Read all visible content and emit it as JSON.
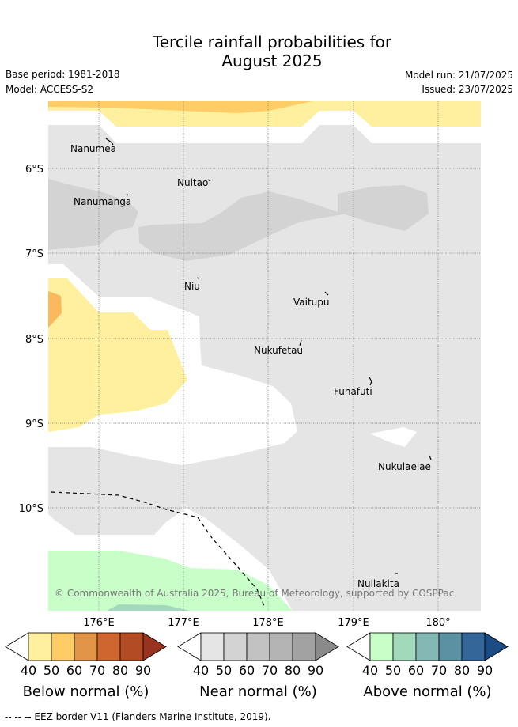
{
  "header": {
    "title_line1": "Tercile rainfall probabilities for",
    "title_line2": "August 2025",
    "base_period": "Base period: 1981-2018",
    "model": "Model: ACCESS-S2",
    "model_run": "Model run: 21/07/2025",
    "issued": "Issued: 23/07/2025"
  },
  "map": {
    "lat_labels": [
      "6°S",
      "7°S",
      "8°S",
      "9°S",
      "10°S"
    ],
    "lon_labels": [
      "176°E",
      "177°E",
      "178°E",
      "179°E",
      "180°"
    ],
    "islands": [
      "Nanumea",
      "Nuitao",
      "Nanumanga",
      "Niu",
      "Vaitupu",
      "Nukufetau",
      "Funafuti",
      "Nukulaelae",
      "Nuilakita"
    ],
    "copyright": "© Commonwealth of Australia 2025, Bureau of Meteorology, supported by COSPPac"
  },
  "colorbars": [
    {
      "title": "Below normal (%)",
      "ticks": [
        "40",
        "50",
        "60",
        "70",
        "80",
        "90"
      ],
      "colors": [
        "#ffffff",
        "#fff0a0",
        "#ffcc66",
        "#e29548",
        "#d0662f",
        "#b34b25",
        "#99321f"
      ]
    },
    {
      "title": "Near normal (%)",
      "ticks": [
        "40",
        "50",
        "60",
        "70",
        "80",
        "90"
      ],
      "colors": [
        "#ffffff",
        "#e5e5e5",
        "#d3d3d3",
        "#c2c2c2",
        "#b4b4b4",
        "#a2a2a2",
        "#8a8a8a"
      ]
    },
    {
      "title": "Above normal (%)",
      "ticks": [
        "40",
        "50",
        "60",
        "70",
        "80",
        "90"
      ],
      "colors": [
        "#ffffff",
        "#c8ffc8",
        "#a2d9bc",
        "#84b8b4",
        "#5b91a2",
        "#34669a",
        "#1b4c84"
      ]
    }
  ],
  "footer": "-- -- -- EEZ border V11 (Flanders Marine Institute, 2019)."
}
